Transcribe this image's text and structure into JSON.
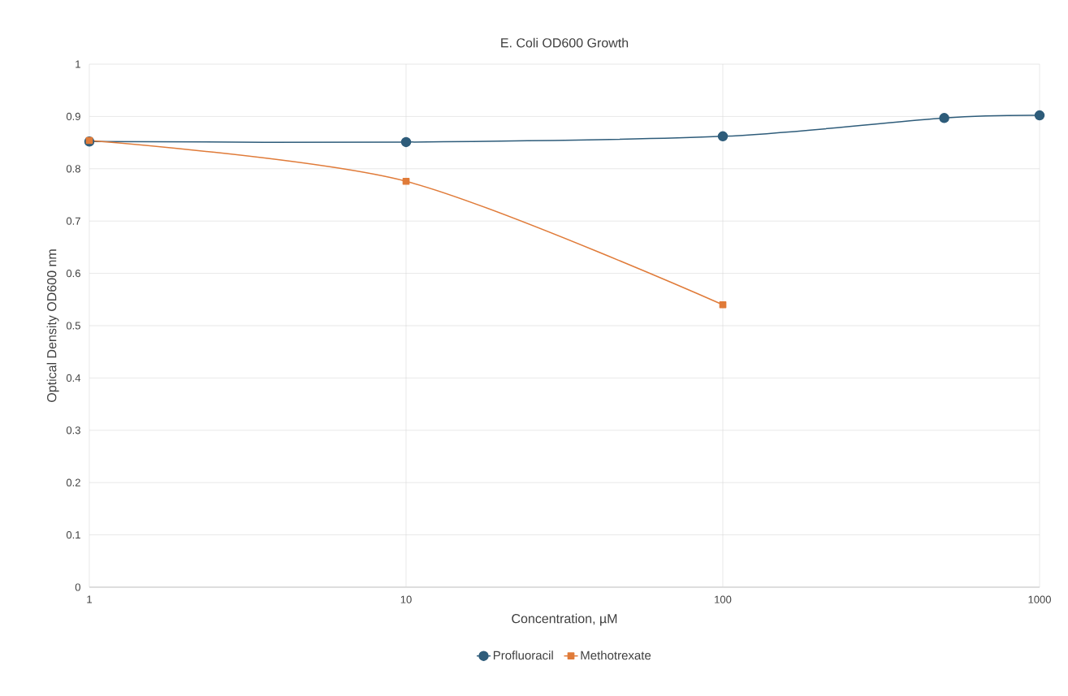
{
  "chart_data": {
    "type": "line",
    "title": "E. Coli OD600 Growth",
    "xlabel": "Concentration, µM",
    "ylabel": "Optical Density OD600 nm",
    "log": "x",
    "xlim": [
      1,
      1000
    ],
    "xticks": [
      1,
      10,
      100,
      1000
    ],
    "ylim": [
      0,
      1
    ],
    "yticks": [
      0,
      0.1,
      0.2,
      0.3,
      0.4,
      0.5,
      0.6,
      0.7,
      0.8,
      0.9,
      1
    ],
    "grid": true,
    "legend": "bottom",
    "line_style": "solid",
    "series": [
      {
        "name": "Profluoracil",
        "color": "#2e5c7a",
        "marker": "circle",
        "x": [
          1,
          10,
          100,
          500,
          1000
        ],
        "values": [
          0.852,
          0.851,
          0.862,
          0.897,
          0.902
        ]
      },
      {
        "name": "Methotrexate",
        "color": "#e07b39",
        "marker": "square",
        "x": [
          1,
          10,
          100
        ],
        "values": [
          0.854,
          0.776,
          0.54
        ]
      }
    ]
  }
}
